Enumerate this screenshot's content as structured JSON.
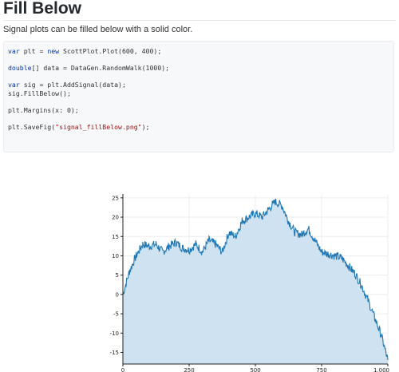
{
  "heading": "Fill Below",
  "description": "Signal plots can be filled below with a solid color.",
  "code": {
    "lines": [
      [
        {
          "t": "var",
          "k": "kw"
        },
        {
          "t": " plt = "
        },
        {
          "t": "new",
          "k": "kw"
        },
        {
          "t": " ScottPlot.Plot(600, 400);"
        }
      ],
      [],
      [
        {
          "t": "double",
          "k": "kw"
        },
        {
          "t": "[] data = DataGen.RandomWalk(1000);"
        }
      ],
      [],
      [
        {
          "t": "var",
          "k": "kw"
        },
        {
          "t": " sig = plt.AddSignal(data);"
        }
      ],
      [
        {
          "t": "sig.FillBelow();"
        }
      ],
      [],
      [
        {
          "t": "plt.Margins(x: 0);"
        }
      ],
      [],
      [
        {
          "t": "plt.SaveFig("
        },
        {
          "t": "\"signal_fillBelow.png\"",
          "k": "str"
        },
        {
          "t": ");"
        }
      ]
    ]
  },
  "colors": {
    "line": "#1f77b4",
    "fill": "#cfe2f1",
    "grid": "#ececec",
    "code_bg": "#f6f8fa"
  },
  "chart_data": {
    "type": "area",
    "title": "",
    "xlabel": "",
    "ylabel": "",
    "xlim": [
      0,
      1000
    ],
    "ylim": [
      -18,
      26
    ],
    "x_ticks": [
      0,
      250,
      500,
      750,
      1000
    ],
    "x_tick_labels": [
      "0",
      "250",
      "500",
      "750",
      "1,000"
    ],
    "y_ticks": [
      -15,
      -10,
      -5,
      0,
      5,
      10,
      15,
      20,
      25
    ],
    "y_tick_labels": [
      "-15",
      "-10",
      "-5",
      "0",
      "5",
      "10",
      "15",
      "20",
      "25"
    ],
    "grid": true,
    "fill": "below",
    "series": [
      {
        "x": [
          0,
          25,
          50,
          75,
          100,
          125,
          150,
          175,
          200,
          225,
          250,
          275,
          300,
          325,
          350,
          375,
          400,
          425,
          450,
          475,
          500,
          525,
          550,
          575,
          600,
          625,
          650,
          675,
          700,
          725,
          750,
          775,
          800,
          825,
          850,
          875,
          900,
          925,
          950,
          975,
          1000
        ],
        "y": [
          0,
          6,
          10,
          13,
          12.5,
          13,
          11,
          12.5,
          13.5,
          12,
          11.5,
          13,
          11,
          14,
          13,
          11,
          16,
          15,
          19,
          20,
          21,
          20,
          22,
          24,
          23,
          19,
          16,
          15.5,
          17,
          14,
          11,
          10.5,
          10,
          9.5,
          7.5,
          5.5,
          2.5,
          -1.5,
          -6,
          -10.5,
          -17
        ]
      }
    ]
  }
}
